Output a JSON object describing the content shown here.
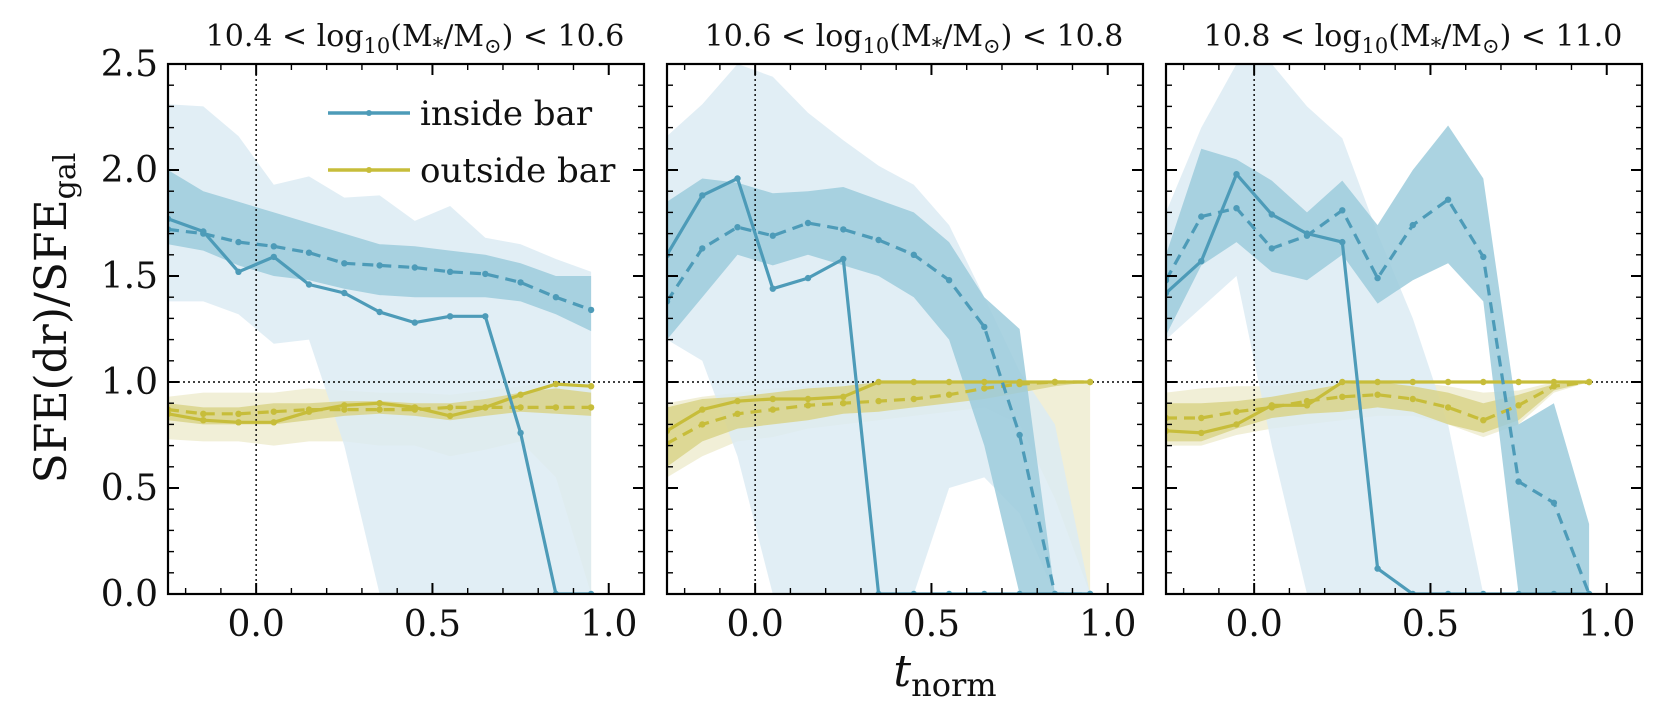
{
  "chart_data": {
    "type": "line",
    "ylabel": "SFE(dr)/SFE_gal",
    "ylabel_main": "SFE(dr)/SFE",
    "ylabel_sub": "gal",
    "xlabel": "t_norm",
    "xlabel_main": "t",
    "xlabel_sub": "norm",
    "xlim": [
      -0.25,
      1.1
    ],
    "ylim": [
      0.0,
      2.5
    ],
    "xticks": [
      0.0,
      0.5,
      1.0
    ],
    "xtick_labels": [
      "0.0",
      "0.5",
      "1.0"
    ],
    "yticks": [
      0.0,
      0.5,
      1.0,
      1.5,
      2.0,
      2.5
    ],
    "ytick_labels": [
      "0.0",
      "0.5",
      "1.0",
      "1.5",
      "2.0",
      "2.5"
    ],
    "reference_lines": {
      "x": 0.0,
      "y": 1.0
    },
    "legend": {
      "placement": "top-center of first panel",
      "entries": [
        {
          "label": "inside bar",
          "color": "#4d9bb8"
        },
        {
          "label": "outside bar",
          "color": "#c7bd3a"
        }
      ]
    },
    "colors": {
      "inside_line": "#4d9bb8",
      "inside_band_inner": "#9ccbdc",
      "inside_band_outer": "#dcebf3",
      "outside_line": "#c7bd3a",
      "outside_band_inner": "#d9d48a",
      "outside_band_outer": "#efecd0"
    },
    "x": [
      -0.25,
      -0.15,
      -0.05,
      0.05,
      0.15,
      0.25,
      0.35,
      0.45,
      0.55,
      0.65,
      0.75,
      0.85,
      0.95
    ],
    "panels": [
      {
        "title_lo": "10.4",
        "title_hi": "10.6",
        "inside": {
          "solid": [
            1.77,
            1.71,
            1.52,
            1.59,
            1.46,
            1.42,
            1.33,
            1.28,
            1.31,
            1.31,
            0.76,
            0.0,
            0.0
          ],
          "dashed": [
            1.72,
            1.7,
            1.66,
            1.64,
            1.61,
            1.56,
            1.55,
            1.54,
            1.52,
            1.51,
            1.47,
            1.4,
            1.34
          ],
          "band_inner_upper": [
            2.0,
            1.9,
            1.85,
            1.8,
            1.75,
            1.7,
            1.65,
            1.64,
            1.62,
            1.6,
            1.56,
            1.5,
            1.5
          ],
          "band_inner_lower": [
            1.65,
            1.62,
            1.55,
            1.5,
            1.48,
            1.44,
            1.41,
            1.4,
            1.4,
            1.4,
            1.38,
            1.32,
            1.24
          ],
          "band_outer_upper": [
            2.31,
            2.3,
            2.16,
            1.93,
            1.97,
            1.87,
            1.88,
            1.76,
            1.83,
            1.68,
            1.65,
            1.58,
            1.52
          ],
          "band_outer_lower": [
            1.38,
            1.38,
            1.32,
            1.18,
            1.2,
            0.7,
            0.0,
            0.0,
            0.0,
            0.0,
            0.0,
            0.0,
            0.0
          ]
        },
        "outside": {
          "solid": [
            0.85,
            0.82,
            0.81,
            0.81,
            0.86,
            0.89,
            0.9,
            0.88,
            0.84,
            0.88,
            0.94,
            0.99,
            0.98
          ],
          "dashed": [
            0.87,
            0.85,
            0.85,
            0.86,
            0.87,
            0.87,
            0.87,
            0.87,
            0.88,
            0.88,
            0.88,
            0.88,
            0.88
          ],
          "band_inner_upper": [
            0.9,
            0.88,
            0.88,
            0.9,
            0.9,
            0.91,
            0.91,
            0.9,
            0.9,
            0.92,
            0.95,
            0.97,
            0.95
          ],
          "band_inner_lower": [
            0.82,
            0.8,
            0.8,
            0.8,
            0.82,
            0.84,
            0.85,
            0.84,
            0.82,
            0.84,
            0.86,
            0.85,
            0.84
          ],
          "band_outer_upper": [
            0.93,
            0.95,
            0.95,
            0.95,
            0.97,
            0.96,
            0.95,
            0.95,
            0.94,
            0.96,
            0.98,
            1.0,
            0.97
          ],
          "band_outer_lower": [
            0.73,
            0.72,
            0.72,
            0.7,
            0.72,
            0.72,
            0.7,
            0.7,
            0.65,
            0.68,
            0.72,
            0.55,
            0.0
          ]
        }
      },
      {
        "title_lo": "10.6",
        "title_hi": "10.8",
        "inside": {
          "solid": [
            1.6,
            1.88,
            1.96,
            1.44,
            1.49,
            1.58,
            0.0,
            0.0,
            0.0,
            0.0,
            0.0,
            0.0,
            0.0
          ],
          "dashed": [
            1.38,
            1.63,
            1.73,
            1.69,
            1.75,
            1.72,
            1.67,
            1.6,
            1.48,
            1.26,
            0.75,
            0.0,
            0.0
          ],
          "band_inner_upper": [
            1.85,
            1.96,
            1.94,
            1.89,
            1.9,
            1.92,
            1.86,
            1.8,
            1.66,
            1.4,
            1.25,
            0.0,
            0.0
          ],
          "band_inner_lower": [
            1.2,
            1.4,
            1.6,
            1.55,
            1.6,
            1.55,
            1.5,
            1.4,
            1.2,
            0.7,
            0.0,
            0.0,
            0.0
          ],
          "band_outer_upper": [
            2.16,
            2.31,
            2.7,
            2.44,
            2.27,
            2.14,
            2.02,
            1.93,
            1.74,
            1.4,
            1.05,
            0.8,
            0.0
          ],
          "band_outer_lower": [
            1.2,
            1.1,
            0.65,
            0.0,
            0.0,
            0.0,
            0.0,
            0.0,
            0.5,
            0.55,
            0.38,
            0.0,
            0.0
          ]
        },
        "outside": {
          "solid": [
            0.77,
            0.87,
            0.91,
            0.92,
            0.92,
            0.93,
            1.0,
            1.0,
            1.0,
            1.0,
            1.0,
            1.0,
            1.0
          ],
          "dashed": [
            0.71,
            0.8,
            0.85,
            0.87,
            0.89,
            0.9,
            0.91,
            0.92,
            0.94,
            0.97,
            0.99,
            1.0,
            1.0
          ],
          "band_inner_upper": [
            0.88,
            0.92,
            0.93,
            0.95,
            0.97,
            0.98,
            1.0,
            1.0,
            1.0,
            1.0,
            1.0,
            1.0,
            1.0
          ],
          "band_inner_lower": [
            0.6,
            0.72,
            0.78,
            0.8,
            0.82,
            0.85,
            0.86,
            0.88,
            0.9,
            0.92,
            0.95,
            0.98,
            1.0
          ],
          "band_outer_upper": [
            0.9,
            0.93,
            0.95,
            0.97,
            0.98,
            1.0,
            1.0,
            1.0,
            1.0,
            1.0,
            1.0,
            1.0,
            1.0
          ],
          "band_outer_lower": [
            0.55,
            0.65,
            0.72,
            0.74,
            0.78,
            0.8,
            0.82,
            0.84,
            0.86,
            0.88,
            0.8,
            0.45,
            0.0
          ]
        }
      },
      {
        "title_lo": "10.8",
        "title_hi": "11.0",
        "inside": {
          "solid": [
            1.42,
            1.57,
            1.98,
            1.79,
            1.7,
            1.66,
            0.12,
            0.0,
            0.0,
            0.0,
            0.0,
            0.0,
            0.0
          ],
          "dashed": [
            1.48,
            1.78,
            1.82,
            1.63,
            1.69,
            1.81,
            1.49,
            1.74,
            1.86,
            1.59,
            0.53,
            0.43,
            0.0
          ],
          "band_inner_upper": [
            1.6,
            2.1,
            2.05,
            1.95,
            1.8,
            1.95,
            1.74,
            2.0,
            2.21,
            1.96,
            0.8,
            0.9,
            0.33
          ],
          "band_inner_lower": [
            1.22,
            1.55,
            1.66,
            1.52,
            1.48,
            1.6,
            1.37,
            1.48,
            1.56,
            1.38,
            0.0,
            0.0,
            0.0
          ],
          "band_outer_upper": [
            1.8,
            2.2,
            2.7,
            2.55,
            2.3,
            2.15,
            1.7,
            1.3,
            0.8,
            0.0,
            0.0,
            0.0,
            0.0
          ],
          "band_outer_lower": [
            1.2,
            1.35,
            1.5,
            0.7,
            0.0,
            0.0,
            0.0,
            0.0,
            0.0,
            0.0,
            0.0,
            0.0,
            0.0
          ]
        },
        "outside": {
          "solid": [
            0.77,
            0.76,
            0.8,
            0.89,
            0.89,
            1.0,
            1.0,
            1.0,
            1.0,
            1.0,
            1.0,
            1.0,
            1.0
          ],
          "dashed": [
            0.83,
            0.83,
            0.86,
            0.88,
            0.91,
            0.93,
            0.94,
            0.92,
            0.88,
            0.82,
            0.89,
            0.98,
            1.0
          ],
          "band_inner_upper": [
            0.9,
            0.9,
            0.91,
            0.93,
            0.96,
            0.99,
            1.0,
            0.98,
            0.95,
            0.9,
            0.94,
            0.99,
            1.0
          ],
          "band_inner_lower": [
            0.72,
            0.72,
            0.78,
            0.83,
            0.85,
            0.86,
            0.88,
            0.86,
            0.8,
            0.76,
            0.82,
            0.96,
            1.0
          ],
          "band_outer_upper": [
            0.95,
            0.97,
            0.98,
            0.98,
            0.99,
            1.0,
            1.0,
            1.0,
            0.98,
            0.95,
            0.96,
            1.0,
            1.0
          ],
          "band_outer_lower": [
            0.7,
            0.7,
            0.75,
            0.78,
            0.8,
            0.82,
            0.84,
            0.84,
            0.8,
            0.74,
            0.8,
            0.95,
            1.0
          ]
        }
      }
    ]
  }
}
